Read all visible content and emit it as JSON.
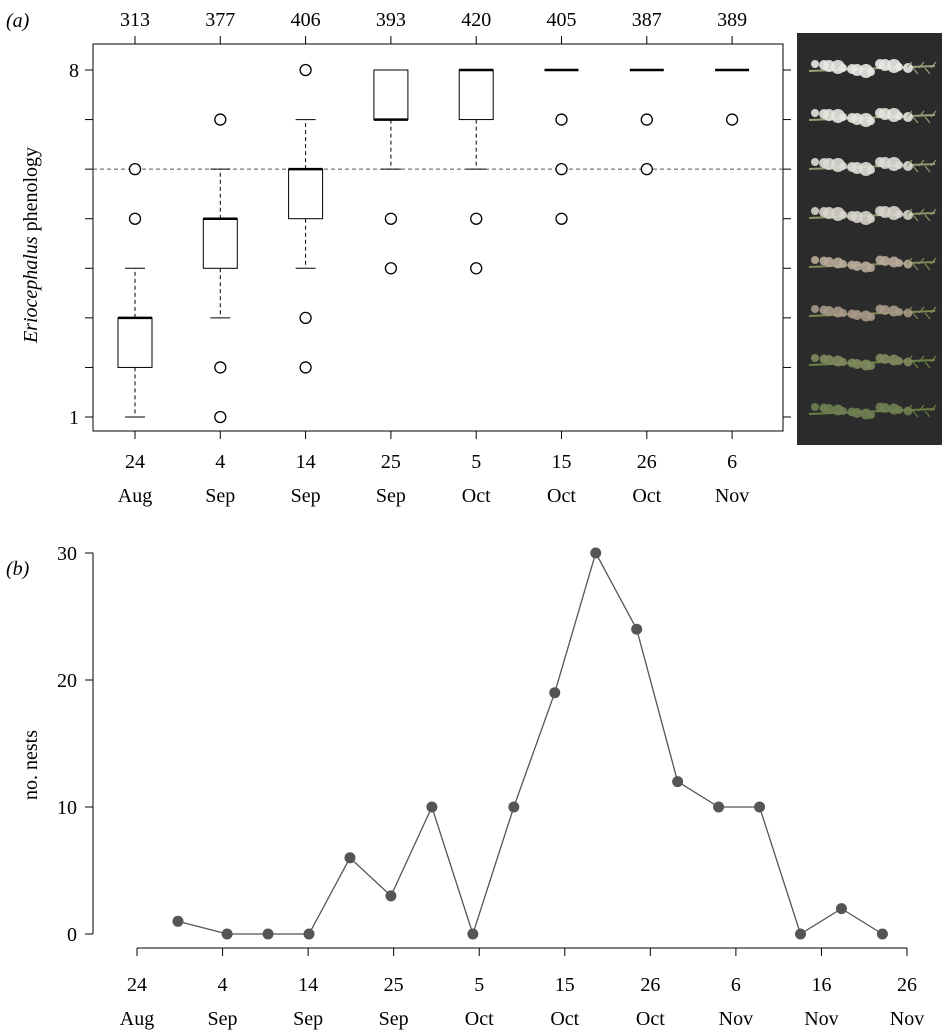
{
  "chart_data": [
    {
      "type": "box",
      "panel_label": "(a)",
      "ylabel_italic": "Eriocephalus",
      "ylabel_rest": " phenology",
      "ylim": [
        1,
        8
      ],
      "yticks_labeled": [
        "1",
        "8"
      ],
      "reference_line_y": 6,
      "categories": [
        {
          "day": "24",
          "month": "Aug"
        },
        {
          "day": "4",
          "month": "Sep"
        },
        {
          "day": "14",
          "month": "Sep"
        },
        {
          "day": "25",
          "month": "Sep"
        },
        {
          "day": "5",
          "month": "Oct"
        },
        {
          "day": "15",
          "month": "Oct"
        },
        {
          "day": "26",
          "month": "Oct"
        },
        {
          "day": "6",
          "month": "Nov"
        }
      ],
      "top_counts": [
        "313",
        "377",
        "406",
        "393",
        "420",
        "405",
        "387",
        "389"
      ],
      "boxes": [
        {
          "whisker_low": 1,
          "q1": 2,
          "median": 3,
          "q3": 3,
          "whisker_high": 4,
          "outliers": [
            6,
            5
          ]
        },
        {
          "whisker_low": 3,
          "q1": 4,
          "median": 5,
          "q3": 5,
          "whisker_high": 6,
          "outliers": [
            7,
            2,
            1
          ]
        },
        {
          "whisker_low": 4,
          "q1": 5,
          "median": 6,
          "q3": 6,
          "whisker_high": 7,
          "outliers": [
            8,
            3,
            2
          ]
        },
        {
          "whisker_low": 6,
          "q1": 7,
          "median": 7,
          "q3": 8,
          "whisker_high": 8,
          "outliers": [
            5,
            4
          ]
        },
        {
          "whisker_low": 6,
          "q1": 7,
          "median": 8,
          "q3": 8,
          "whisker_high": 8,
          "outliers": [
            5,
            4
          ]
        },
        {
          "whisker_low": 8,
          "q1": 8,
          "median": 8,
          "q3": 8,
          "whisker_high": 8,
          "outliers": [
            7,
            6,
            5
          ]
        },
        {
          "whisker_low": 8,
          "q1": 8,
          "median": 8,
          "q3": 8,
          "whisker_high": 8,
          "outliers": [
            7,
            6
          ]
        },
        {
          "whisker_low": 8,
          "q1": 8,
          "median": 8,
          "q3": 8,
          "whisker_high": 8,
          "outliers": [
            7
          ]
        }
      ]
    },
    {
      "type": "line",
      "panel_label": "(b)",
      "ylabel": "no. nests",
      "ylim": [
        0,
        30
      ],
      "yticks": [
        0,
        10,
        20,
        30
      ],
      "xticks": [
        {
          "day": "24",
          "month": "Aug"
        },
        {
          "day": "4",
          "month": "Sep"
        },
        {
          "day": "14",
          "month": "Sep"
        },
        {
          "day": "25",
          "month": "Sep"
        },
        {
          "day": "5",
          "month": "Oct"
        },
        {
          "day": "15",
          "month": "Oct"
        },
        {
          "day": "26",
          "month": "Oct"
        },
        {
          "day": "6",
          "month": "Nov"
        },
        {
          "day": "16",
          "month": "Nov"
        },
        {
          "day": "26",
          "month": "Nov"
        }
      ],
      "points": [
        {
          "x": "2013-08-29",
          "y": 1
        },
        {
          "x": "2013-09-04",
          "y": 0
        },
        {
          "x": "2013-09-09",
          "y": 0
        },
        {
          "x": "2013-09-14",
          "y": 0
        },
        {
          "x": "2013-09-19",
          "y": 6
        },
        {
          "x": "2013-09-24",
          "y": 3
        },
        {
          "x": "2013-09-29",
          "y": 10
        },
        {
          "x": "2013-10-04",
          "y": 0
        },
        {
          "x": "2013-10-09",
          "y": 10
        },
        {
          "x": "2013-10-14",
          "y": 19
        },
        {
          "x": "2013-10-19",
          "y": 30
        },
        {
          "x": "2013-10-24",
          "y": 24
        },
        {
          "x": "2013-10-29",
          "y": 12
        },
        {
          "x": "2013-11-03",
          "y": 10
        },
        {
          "x": "2013-11-08",
          "y": 10
        },
        {
          "x": "2013-11-13",
          "y": 0
        },
        {
          "x": "2013-11-18",
          "y": 2
        },
        {
          "x": "2013-11-23",
          "y": 0
        }
      ],
      "marker_color": "#555555",
      "line_color": "#555555"
    }
  ],
  "photo_panel": {
    "description_icon": "eriocephalus-phenology-stages-photo",
    "stages": 8,
    "background": "#2b2b2b"
  }
}
